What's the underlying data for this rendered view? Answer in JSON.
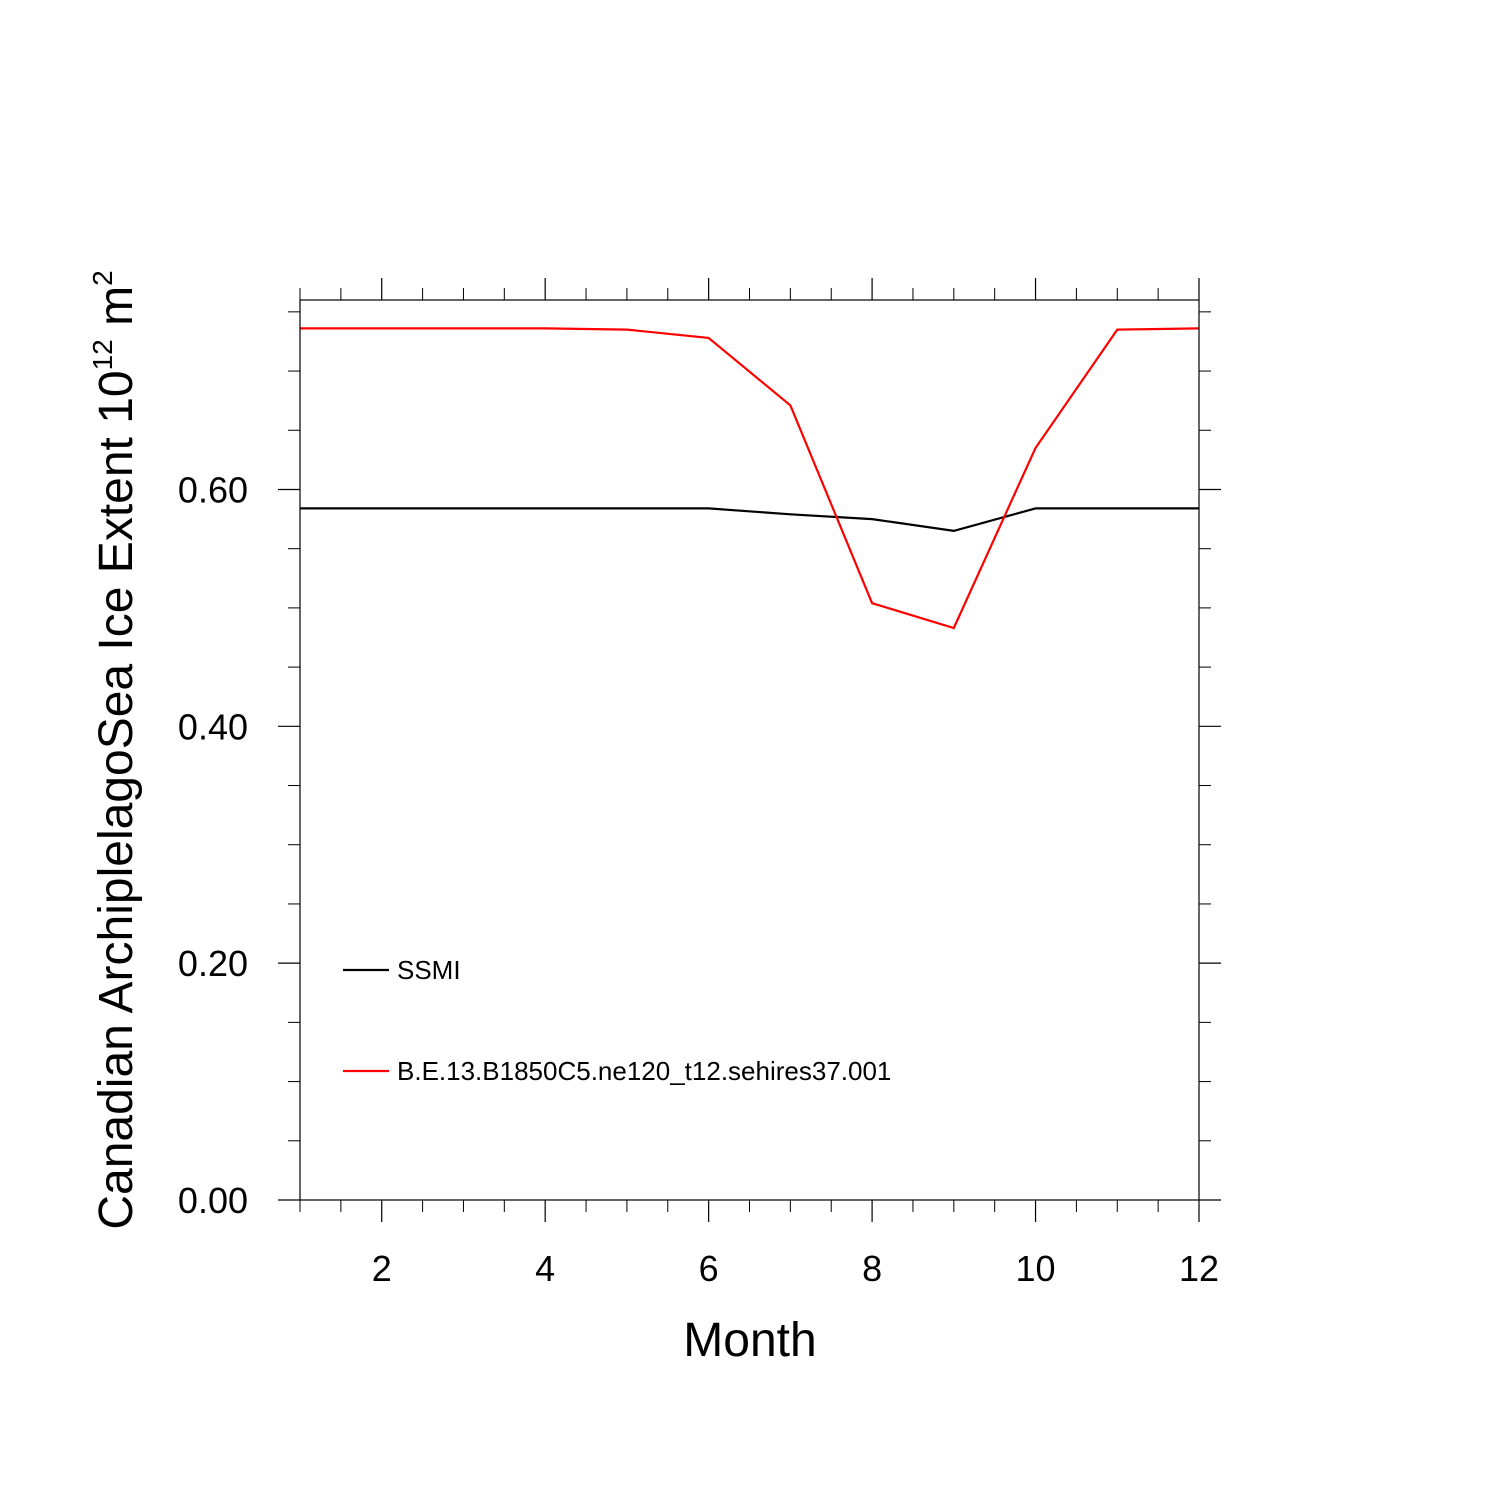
{
  "chart_data": {
    "type": "line",
    "title": "",
    "xlabel": "Month",
    "ylabel": {
      "text": "Canadian ArchiplelagoSea Ice Extent 10",
      "superscript": "12",
      "unit": " m",
      "unit_superscript": "2"
    },
    "xlim": [
      1,
      12
    ],
    "ylim": [
      0,
      0.76
    ],
    "x_ticks": [
      2,
      4,
      6,
      8,
      10,
      12
    ],
    "x_tick_labels": [
      "2",
      "4",
      "6",
      "8",
      "10",
      "12"
    ],
    "y_ticks": [
      0,
      0.2,
      0.4,
      0.6
    ],
    "y_tick_labels": [
      "0.00",
      "0.20",
      "0.40",
      "0.60"
    ],
    "x_minor_step": 0.5,
    "y_minor_step": 0.05,
    "grid": false,
    "legend_position": "lower-left inside",
    "x": [
      1,
      2,
      3,
      4,
      5,
      6,
      7,
      8,
      9,
      10,
      11,
      12
    ],
    "series": [
      {
        "name": "SSMI",
        "color": "#000000",
        "values": [
          0.584,
          0.584,
          0.584,
          0.584,
          0.584,
          0.584,
          0.579,
          0.575,
          0.565,
          0.584,
          0.584,
          0.584
        ]
      },
      {
        "name": "B.E.13.B1850C5.ne120_t12.sehires37.001",
        "color": "#ff0000",
        "values": [
          0.736,
          0.736,
          0.736,
          0.736,
          0.735,
          0.728,
          0.671,
          0.504,
          0.483,
          0.635,
          0.735,
          0.736
        ]
      }
    ]
  }
}
